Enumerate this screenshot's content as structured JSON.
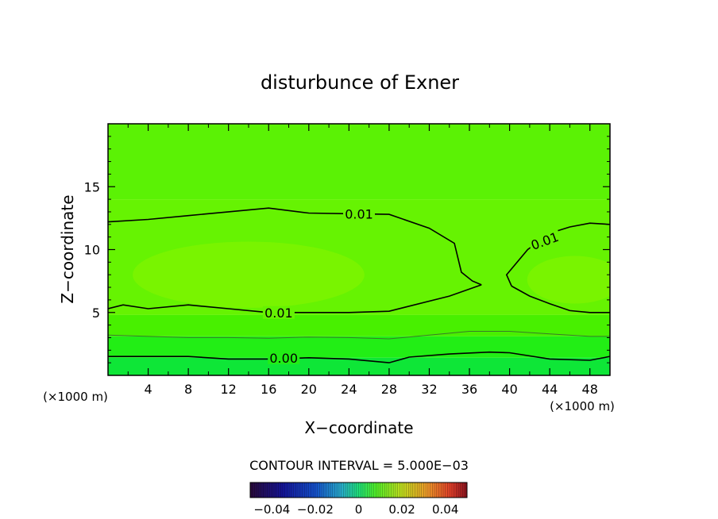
{
  "chart_data": {
    "type": "contour",
    "title": "disturbunce of Exner",
    "xlabel": "X−coordinate",
    "ylabel": "Z−coordinate",
    "x_unit_left": "(×1000 m)",
    "x_unit_right": "(×1000 m)",
    "xlim": [
      0,
      50
    ],
    "ylim": [
      0,
      20
    ],
    "x_ticks": [
      4,
      8,
      12,
      16,
      20,
      24,
      28,
      32,
      36,
      40,
      44,
      48
    ],
    "y_ticks": [
      5,
      10,
      15
    ],
    "contour_interval_text": "CONTOUR INTERVAL = 5.000E−03",
    "colorbar": {
      "range": [
        -0.05,
        0.05
      ],
      "tick_values": [
        -0.04,
        -0.02,
        0,
        0.02,
        0.04
      ],
      "tick_labels": [
        "−0.04",
        "−0.02",
        "0",
        "0.02",
        "0.04"
      ]
    },
    "fill_colors": {
      "band_top": "#5bf205",
      "band_upper": "#66f302",
      "band_core": "#7ef400",
      "band_mid": "#48f000",
      "band_low": "#22ee15",
      "band_bottom": "#0ee637"
    },
    "contours": [
      {
        "level_label": "0.01",
        "points": [
          [
            0,
            12.2
          ],
          [
            4,
            12.4
          ],
          [
            8,
            12.7
          ],
          [
            12,
            13
          ],
          [
            16,
            13.3
          ],
          [
            20,
            12.9
          ],
          [
            24,
            12.85
          ],
          [
            28,
            12.8
          ],
          [
            32,
            11.7
          ],
          [
            34.5,
            10.5
          ],
          [
            35.2,
            8.2
          ],
          [
            36.3,
            7.5
          ],
          [
            37.2,
            7.2
          ]
        ]
      },
      {
        "level_label": "0.01",
        "points": [
          [
            37.2,
            7.2
          ],
          [
            34,
            6.3
          ],
          [
            30,
            5.5
          ],
          [
            28,
            5.1
          ],
          [
            24,
            5
          ],
          [
            20,
            5
          ],
          [
            16,
            5
          ],
          [
            12,
            5.3
          ],
          [
            8,
            5.6
          ],
          [
            4,
            5.3
          ],
          [
            1.5,
            5.6
          ],
          [
            0,
            5.3
          ]
        ]
      },
      {
        "level_label": "0.01",
        "points": [
          [
            40.2,
            7.1
          ],
          [
            39.7,
            8
          ],
          [
            41.8,
            10
          ],
          [
            44,
            11.3
          ],
          [
            46,
            11.8
          ],
          [
            48,
            12.1
          ],
          [
            50,
            12
          ]
        ]
      },
      {
        "level_label": "0.01",
        "points": [
          [
            40.2,
            7.1
          ],
          [
            42,
            6.3
          ],
          [
            44,
            5.7
          ],
          [
            46,
            5.15
          ],
          [
            48,
            5
          ],
          [
            50,
            5
          ]
        ]
      },
      {
        "level_label": "0.00",
        "points": [
          [
            0,
            1.5
          ],
          [
            4,
            1.5
          ],
          [
            8,
            1.5
          ],
          [
            12,
            1.3
          ],
          [
            16,
            1.3
          ],
          [
            20,
            1.4
          ],
          [
            24,
            1.3
          ],
          [
            28,
            1
          ],
          [
            30,
            1.45
          ],
          [
            34,
            1.7
          ],
          [
            38,
            1.85
          ],
          [
            40,
            1.8
          ],
          [
            44,
            1.3
          ],
          [
            48,
            1.2
          ],
          [
            50,
            1.5
          ]
        ]
      },
      {
        "level_label": "",
        "points": [
          [
            0,
            3.2
          ],
          [
            4,
            3.1
          ],
          [
            8,
            3
          ],
          [
            12,
            3
          ],
          [
            16,
            2.95
          ],
          [
            20,
            3.05
          ],
          [
            24,
            3
          ],
          [
            28,
            2.9
          ],
          [
            32,
            3.2
          ],
          [
            36,
            3.5
          ],
          [
            40,
            3.5
          ],
          [
            44,
            3.3
          ],
          [
            48,
            3.1
          ],
          [
            50,
            3.1
          ]
        ]
      }
    ],
    "contour_labels": [
      {
        "text": "0.01",
        "x": 25,
        "y": 12.85
      },
      {
        "text": "0.01",
        "x": 17,
        "y": 5
      },
      {
        "text": "0.01",
        "x": 43.5,
        "y": 10.7,
        "angle": -20
      },
      {
        "text": "0.00",
        "x": 17.5,
        "y": 1.4
      }
    ]
  }
}
